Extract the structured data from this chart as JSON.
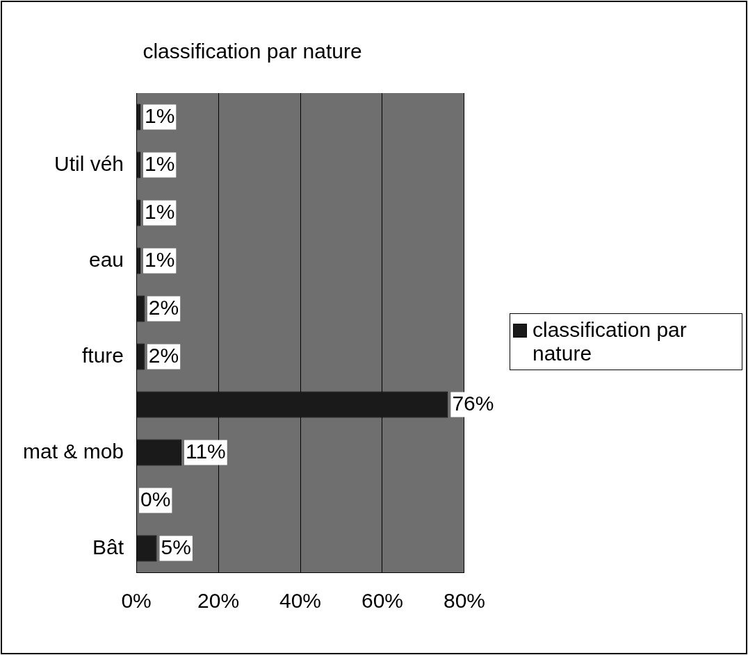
{
  "chart_data": {
    "type": "bar",
    "title": "classification par nature",
    "orientation": "horizontal",
    "categories": [
      null,
      "Util véh",
      null,
      "eau",
      null,
      "fture",
      null,
      "mat & mob",
      null,
      "Bât"
    ],
    "series": [
      {
        "name": "classification par nature",
        "color": "#1a1a1a",
        "values": [
          1,
          1,
          1,
          1,
          2,
          2,
          76,
          11,
          0,
          5
        ],
        "value_labels": [
          "1%",
          "1%",
          "1%",
          "1%",
          "2%",
          "2%",
          "76%",
          "11%",
          "0%",
          "5%"
        ]
      }
    ],
    "xlim": [
      0,
      80
    ],
    "xticks": [
      {
        "value": 0,
        "label": "0%"
      },
      {
        "value": 20,
        "label": "20%"
      },
      {
        "value": 40,
        "label": "40%"
      },
      {
        "value": 60,
        "label": "60%"
      },
      {
        "value": 80,
        "label": "80%"
      }
    ],
    "grid": "x",
    "legend": "right"
  }
}
